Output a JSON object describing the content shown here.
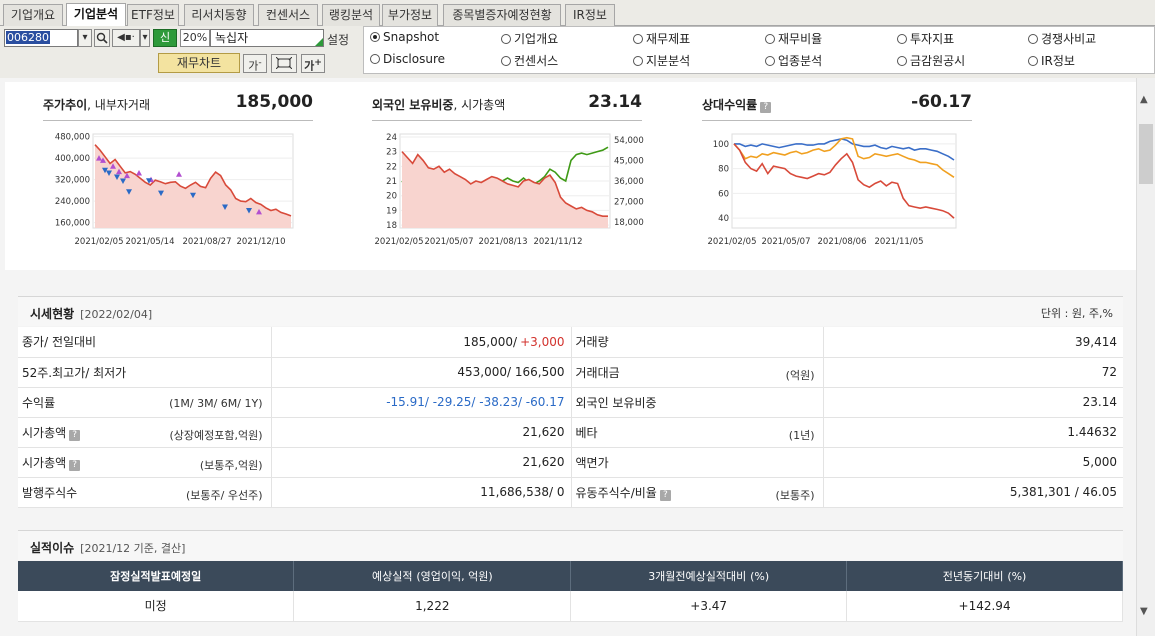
{
  "tabs": [
    "기업개요",
    "기업분석",
    "ETF정보",
    "리서치동향",
    "컨센서스",
    "랭킹분석",
    "부가정보",
    "종목별증자예정현황",
    "IR정보"
  ],
  "active_tab": "기업분석",
  "toolbar": {
    "code": "006280",
    "shin": "신",
    "pct": "20%",
    "name": "녹십자",
    "setting": "설정",
    "fin_button": "재무차트",
    "ga1": "가",
    "ga2": "가"
  },
  "radios": [
    {
      "label": "Snapshot",
      "checked": true
    },
    {
      "label": "기업개요"
    },
    {
      "label": "재무제표"
    },
    {
      "label": "재무비율"
    },
    {
      "label": "투자지표"
    },
    {
      "label": "경쟁사비교"
    },
    {
      "label": "Disclosure"
    },
    {
      "label": "컨센서스"
    },
    {
      "label": "지분분석"
    },
    {
      "label": "업종분석"
    },
    {
      "label": "금감원공시"
    },
    {
      "label": "IR정보"
    }
  ],
  "charts": {
    "price": {
      "title": "주가추이",
      "subtitle": ", 내부자거래",
      "value": "185,000"
    },
    "foreign": {
      "title": "외국인 보유비중",
      "subtitle": ", 시가총액",
      "value": "23.14"
    },
    "relative": {
      "title": "상대수익률",
      "value": "-60.17"
    }
  },
  "chart_data": [
    {
      "type": "area",
      "title": "주가추이",
      "x_ticks": [
        "2021/02/05",
        "2021/05/14",
        "2021/08/27",
        "2021/12/10"
      ],
      "y_ticks": [
        "480,000",
        "400,000",
        "320,000",
        "240,000",
        "160,000"
      ],
      "ylim": [
        140000,
        490000
      ],
      "series": [
        {
          "values": [
            450000,
            430000,
            405000,
            380000,
            395000,
            370000,
            345000,
            350000,
            340000,
            325000,
            310000,
            300000,
            318000,
            312000,
            305000,
            310000,
            312000,
            296000,
            288000,
            300000,
            310000,
            295000,
            290000,
            325000,
            348000,
            335000,
            300000,
            282000,
            250000,
            240000,
            238000,
            250000,
            235000,
            228000,
            215000,
            205000,
            210000,
            198000,
            192000,
            185000
          ]
        }
      ],
      "buy_markers": [
        [
          0.03,
          400000
        ],
        [
          0.05,
          392000
        ],
        [
          0.1,
          370000
        ],
        [
          0.13,
          350000
        ],
        [
          0.17,
          335000
        ],
        [
          0.23,
          345000
        ],
        [
          0.29,
          320000
        ],
        [
          0.43,
          340000
        ],
        [
          0.83,
          200000
        ]
      ],
      "sell_markers": [
        [
          0.06,
          355000
        ],
        [
          0.08,
          345000
        ],
        [
          0.12,
          330000
        ],
        [
          0.15,
          315000
        ],
        [
          0.18,
          275000
        ],
        [
          0.28,
          316000
        ],
        [
          0.34,
          270000
        ],
        [
          0.5,
          262000
        ],
        [
          0.66,
          218000
        ],
        [
          0.78,
          205000
        ]
      ]
    },
    {
      "type": "line",
      "title": "외국인 보유비중",
      "x_ticks": [
        "2021/02/05",
        "2021/05/07",
        "2021/08/13",
        "2021/11/12"
      ],
      "y_ticks": [
        "24",
        "23",
        "22",
        "21",
        "20",
        "19",
        "18"
      ],
      "y2_ticks": [
        "54,000",
        "45,000",
        "36,000",
        "27,000",
        "18,000"
      ],
      "ylim": [
        17.8,
        24.2
      ],
      "series": [
        {
          "values": [
            21.0,
            20.4,
            19.4,
            19.0,
            18.8,
            18.9,
            18.7,
            18.8,
            19.0,
            19.8,
            20.3,
            20.5,
            20.6,
            20.4,
            20.2,
            20.2,
            20.4,
            20.6,
            20.3,
            21.0,
            21.2,
            21.0,
            20.9,
            21.2,
            20.9,
            20.8,
            21.0,
            21.3,
            21.8,
            21.6,
            21.2,
            21.0,
            22.4,
            22.8,
            22.9,
            22.8,
            22.9,
            23.0,
            23.1,
            23.3
          ]
        },
        {
          "values": [
            23.0,
            22.6,
            22.2,
            22.8,
            22.4,
            21.9,
            21.8,
            22.0,
            21.6,
            21.8,
            21.5,
            21.3,
            21.1,
            20.8,
            21.0,
            20.9,
            21.1,
            21.3,
            21.2,
            21.0,
            20.8,
            20.7,
            20.6,
            21.0,
            21.1,
            20.9,
            20.8,
            21.2,
            21.4,
            20.9,
            19.9,
            19.5,
            19.3,
            19.1,
            19.2,
            19.0,
            18.9,
            18.7,
            18.6,
            18.6
          ]
        }
      ]
    },
    {
      "type": "line",
      "title": "상대수익률",
      "x_ticks": [
        "2021/02/05",
        "2021/05/07",
        "2021/08/06",
        "2021/11/05"
      ],
      "y_ticks": [
        "100",
        "80",
        "60",
        "40"
      ],
      "ylim": [
        32,
        108
      ],
      "series": [
        {
          "values": [
            100,
            100,
            98,
            99,
            98,
            100,
            99,
            98,
            97,
            98,
            99,
            100,
            100,
            99,
            99,
            100,
            100,
            102,
            103,
            104,
            103,
            100,
            99,
            98,
            98,
            99,
            97,
            96,
            98,
            97,
            96,
            97,
            95,
            96,
            96,
            95,
            94,
            92,
            90,
            87
          ]
        },
        {
          "values": [
            100,
            95,
            88,
            90,
            89,
            92,
            91,
            93,
            92,
            91,
            93,
            94,
            92,
            93,
            95,
            96,
            94,
            95,
            99,
            104,
            105,
            104,
            90,
            88,
            89,
            92,
            91,
            90,
            91,
            92,
            90,
            88,
            87,
            85,
            85,
            84,
            83,
            79,
            76,
            73
          ]
        },
        {
          "values": [
            100,
            95,
            85,
            80,
            78,
            84,
            76,
            82,
            81,
            80,
            76,
            74,
            73,
            72,
            74,
            76,
            75,
            77,
            83,
            88,
            92,
            85,
            71,
            67,
            65,
            68,
            70,
            66,
            69,
            68,
            56,
            50,
            49,
            48,
            49,
            48,
            47,
            46,
            44,
            40
          ]
        }
      ]
    }
  ],
  "market": {
    "title": "시세현황",
    "date": "[2022/02/04]",
    "unit": "단위 : 원, 주,%",
    "rows": [
      {
        "l": "종가/ 전일대비",
        "ls": "",
        "v": "185,000/",
        "vc": "+3,000",
        "r": "거래량",
        "rs": "",
        "rv": "39,414"
      },
      {
        "l": "52주.최고가/ 최저가",
        "ls": "",
        "v": "453,000/ 166,500",
        "vc": "",
        "r": "거래대금",
        "rs": "(억원)",
        "rv": "72"
      },
      {
        "l": "수익률",
        "ls": "(1M/ 3M/ 6M/ 1Y)",
        "v": "",
        "vc": "-15.91/ -29.25/ -38.23/ -60.17",
        "r": "외국인 보유비중",
        "rs": "",
        "rv": "23.14"
      },
      {
        "l": "시가총액",
        "ls": "(상장예정포함,억원)",
        "v": "21,620",
        "vc": "",
        "r": "베타",
        "rs": "(1년)",
        "rv": "1.44632",
        "q": true
      },
      {
        "l": "시가총액",
        "ls": "(보통주,억원)",
        "v": "21,620",
        "vc": "",
        "r": "액면가",
        "rs": "",
        "rv": "5,000",
        "q": true
      },
      {
        "l": "발행주식수",
        "ls": "(보통주/ 우선주)",
        "v": "11,686,538/ 0",
        "vc": "",
        "r": "유동주식수/비율",
        "rs": "(보통주)",
        "rv": "5,381,301 / 46.05",
        "rq": true
      }
    ]
  },
  "perf": {
    "title": "실적이슈",
    "date": "[2021/12 기준, 결산]",
    "headers": [
      "잠정실적발표예정일",
      "예상실적",
      "(영업이익, 억원)",
      "3개월전예상실적대비",
      "(%)",
      "전년동기대비",
      "(%)"
    ],
    "row": [
      "미정",
      "1,222",
      "+3.47",
      "+142.94"
    ]
  }
}
